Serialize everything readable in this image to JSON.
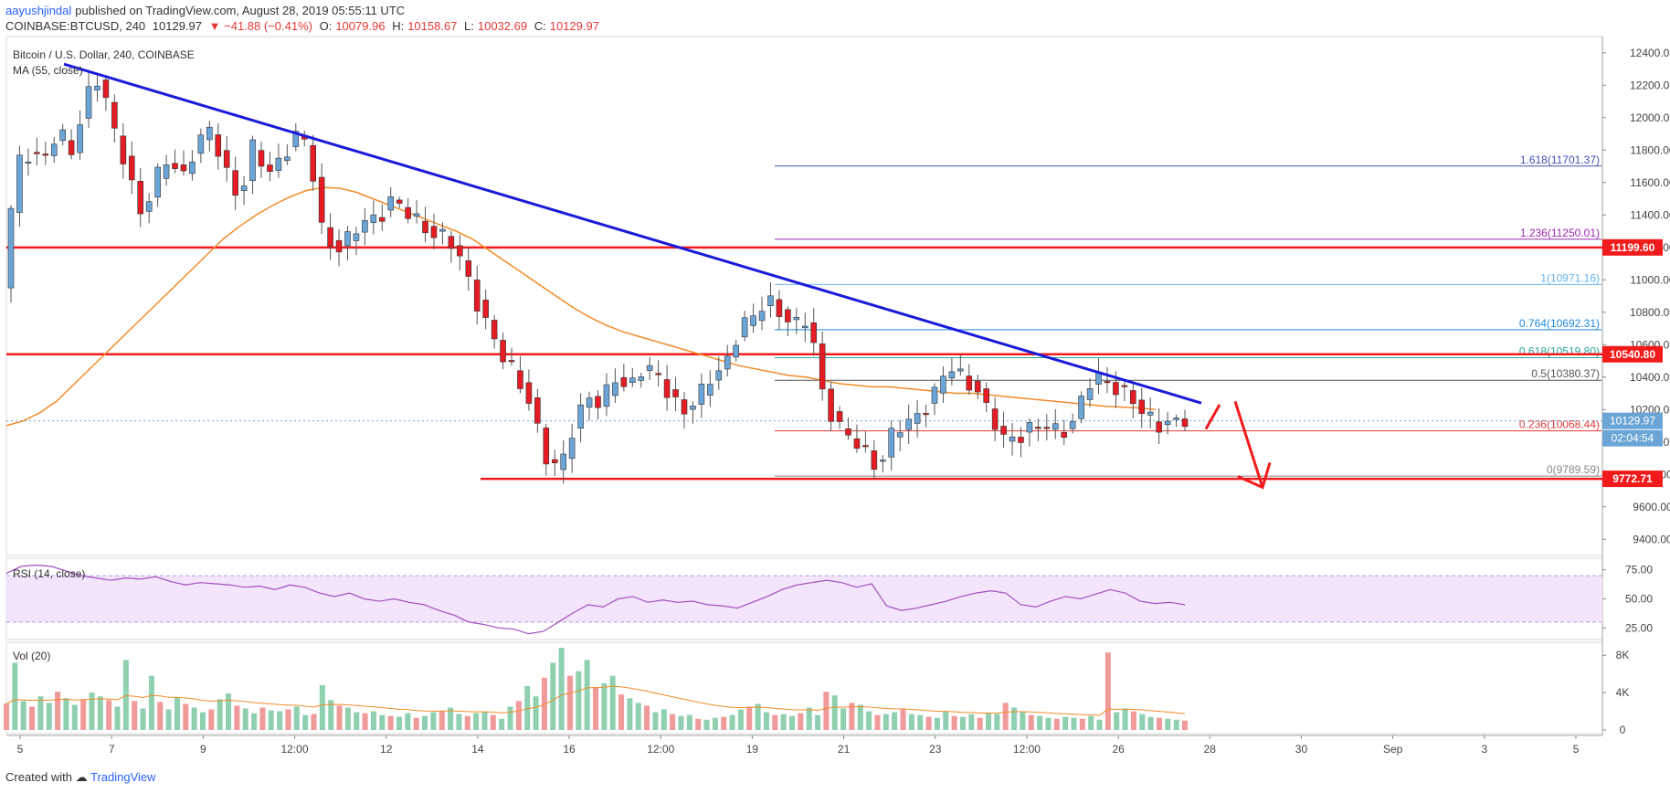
{
  "header": {
    "author": "aayushjindal",
    "published_text": "published on TradingView.com, August 28, 2019 05:55:11 UTC",
    "symbol": "COINBASE:BTCUSD, 240",
    "last": "10129.97",
    "change": "▼ −41.88 (−0.41%)",
    "o_label": "O:",
    "o_val": "10079.96",
    "h_label": "H:",
    "h_val": "10158.67",
    "l_label": "L:",
    "l_val": "10032.69",
    "c_label": "C:",
    "c_val": "10129.97"
  },
  "footer": {
    "created_with": "Created with",
    "brand": "TradingView"
  },
  "colors": {
    "up": "#6ba5d8",
    "down": "#e51c23",
    "trend": "#1a1adb",
    "ma": "#f28c28",
    "rsi": "#a14fc2",
    "level": "#f21b1b",
    "vol_up": "#8fd0b0",
    "vol_down": "#f19a9a"
  },
  "chart_data": [
    {
      "type": "candlestick",
      "title": "Bitcoin / U.S. Dollar, 240, COINBASE",
      "indicator": "MA (55, close)",
      "ylim": [
        9300,
        12500
      ],
      "y_ticks": [
        "12400.00",
        "12200.00",
        "12000.00",
        "11800.00",
        "11600.00",
        "11400.00",
        "11200.00",
        "11000.00",
        "10800.00",
        "10600.00",
        "10400.00",
        "10200.00",
        "10000.00",
        "9800.00",
        "9600.00",
        "9400.00"
      ],
      "x_ticks": [
        "5",
        "7",
        "9",
        "12:00",
        "12",
        "14",
        "16",
        "12:00",
        "19",
        "21",
        "23",
        "12:00",
        "26",
        "28",
        "30",
        "Sep",
        "3",
        "5"
      ],
      "price_path": [
        10950,
        11700,
        11800,
        11750,
        11900,
        11780,
        12150,
        12250,
        11900,
        11700,
        11400,
        11600,
        11750,
        11650,
        11850,
        11900,
        11700,
        11500,
        11800,
        11650,
        11750,
        11900,
        11800,
        11300,
        11200,
        11250,
        11350,
        11400,
        11500,
        11400,
        11350,
        11300,
        11250,
        11100,
        10900,
        10700,
        10500,
        10400,
        10250,
        9900,
        9800,
        10100,
        10300,
        10200,
        10400,
        10350,
        10450,
        10400,
        10300,
        10200,
        10250,
        10400,
        10500,
        10700,
        10750,
        10900,
        10800,
        10700,
        10750,
        10300,
        10100,
        10000,
        9950,
        9850,
        10050,
        10100,
        10200,
        10300,
        10450,
        10400,
        10350,
        10150,
        10000,
        10050,
        10100,
        10080,
        10050,
        10150,
        10350,
        10380,
        10350,
        10300,
        10150,
        10100,
        10150,
        10129.97
      ],
      "ma_path": [
        10100,
        10130,
        10180,
        10250,
        10350,
        10450,
        10550,
        10650,
        10750,
        10850,
        10950,
        11050,
        11150,
        11250,
        11330,
        11400,
        11460,
        11510,
        11550,
        11570,
        11565,
        11540,
        11500,
        11460,
        11420,
        11380,
        11340,
        11300,
        11250,
        11180,
        11110,
        11040,
        10970,
        10900,
        10830,
        10770,
        10720,
        10680,
        10650,
        10620,
        10590,
        10560,
        10530,
        10500,
        10470,
        10450,
        10430,
        10410,
        10400,
        10380,
        10360,
        10350,
        10340,
        10340,
        10330,
        10320,
        10310,
        10300,
        10300,
        10290,
        10280,
        10270,
        10260,
        10250,
        10240,
        10230,
        10220,
        10215,
        10210,
        10200
      ],
      "trendline": {
        "from": [
          "5",
          12330
        ],
        "to": [
          "28",
          10240
        ]
      },
      "horizontal_levels": [
        {
          "label": "11199.60",
          "value": 11199.6
        },
        {
          "label": "10540.80",
          "value": 10540.8
        },
        {
          "label": "9772.71",
          "value": 9772.71
        }
      ],
      "fibonacci": [
        {
          "label": "1.618(11701.37)",
          "value": 11701.37,
          "color": "#3f51b5"
        },
        {
          "label": "1.236(11250.01)",
          "value": 11250.01,
          "color": "#9c27b0"
        },
        {
          "label": "1(10971.16)",
          "value": 10971.16,
          "color": "#64b5f6"
        },
        {
          "label": "0.764(10692.31)",
          "value": 10692.31,
          "color": "#1e88e5"
        },
        {
          "label": "0.618(10519.80)",
          "value": 10519.8,
          "color": "#26a69a"
        },
        {
          "label": "0.5(10380.37)",
          "value": 10380.37,
          "color": "#555555"
        },
        {
          "label": "0.236(10068.44)",
          "value": 10068.44,
          "color": "#e53935"
        },
        {
          "label": "0(9789.59)",
          "value": 9789.59,
          "color": "#888888"
        }
      ],
      "last_price_label": "10129.97",
      "last_price": 10129.97,
      "countdown_label": "02:04:54"
    },
    {
      "type": "line",
      "indicator": "RSI (14, close)",
      "ylim": [
        15,
        85
      ],
      "y_ticks": [
        "75.00",
        "50.00",
        "25.00"
      ],
      "band": [
        30,
        70
      ],
      "values": [
        72,
        78,
        79,
        78,
        74,
        70,
        68,
        66,
        68,
        67,
        69,
        65,
        62,
        64,
        63,
        62,
        60,
        61,
        58,
        62,
        60,
        55,
        52,
        55,
        50,
        48,
        50,
        47,
        45,
        40,
        36,
        30,
        28,
        25,
        24,
        20,
        22,
        30,
        38,
        45,
        43,
        50,
        52,
        47,
        49,
        47,
        48,
        45,
        44,
        42,
        47,
        52,
        58,
        62,
        64,
        66,
        64,
        60,
        63,
        44,
        40,
        42,
        45,
        48,
        52,
        55,
        57,
        55,
        45,
        43,
        48,
        52,
        50,
        54,
        58,
        55,
        48,
        46,
        47,
        45
      ]
    },
    {
      "type": "bar",
      "indicator": "Vol (20)",
      "ylim": [
        0,
        9000
      ],
      "y_ticks": [
        "8K",
        "4K",
        "0"
      ],
      "values": [
        2800,
        7200,
        3100,
        2500,
        3600,
        2900,
        4100,
        3400,
        2700,
        3300,
        4000,
        3600,
        3200,
        2500,
        7500,
        3100,
        2300,
        5800,
        3000,
        2200,
        3500,
        2800,
        2400,
        1900,
        2200,
        3300,
        3900,
        2600,
        2300,
        1800,
        2400,
        2100,
        2000,
        2200,
        2500,
        1600,
        1700,
        4800,
        3200,
        2600,
        2400,
        1900,
        1800,
        2000,
        1600,
        1500,
        1400,
        1800,
        1300,
        1500,
        1900,
        2000,
        2400,
        1700,
        1500,
        1800,
        1900,
        1600,
        1200,
        2500,
        3100,
        4700,
        3600,
        5600,
        7200,
        8800,
        5800,
        6300,
        7500,
        4600,
        5000,
        5800,
        3800,
        3400,
        2900,
        2600,
        1900,
        2200,
        1700,
        1500,
        1600,
        1200,
        1100,
        1300,
        1400,
        1600,
        2200,
        2500,
        2800,
        1900,
        1600,
        1700,
        1500,
        1800,
        2400,
        1600,
        4100,
        3700,
        2300,
        2900,
        2700,
        2000,
        1600,
        1700,
        1900,
        2200,
        1700,
        1600,
        1400,
        1300,
        2000,
        1500,
        1400,
        1700,
        1300,
        1800,
        1700,
        2900,
        2400,
        2000,
        1600,
        1500,
        1300,
        1200,
        1400,
        1300,
        1200,
        1500,
        1100,
        8300,
        1900,
        2300,
        2000,
        1700,
        1400,
        1300,
        1200,
        1100,
        1000
      ]
    }
  ]
}
